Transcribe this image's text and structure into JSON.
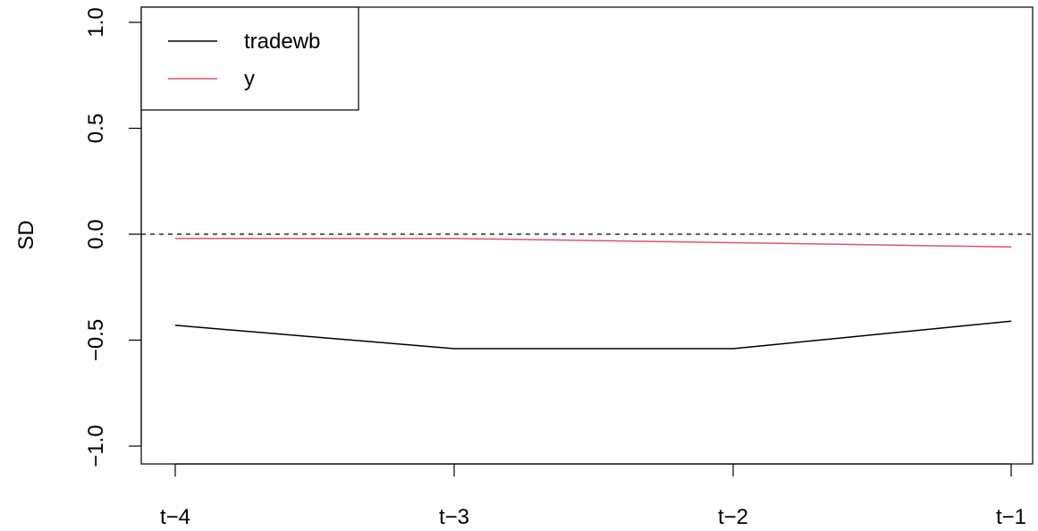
{
  "chart_data": {
    "type": "line",
    "title": "",
    "xlabel": "",
    "ylabel": "SD",
    "categories": [
      "t−4",
      "t−3",
      "t−2",
      "t−1"
    ],
    "ylim": [
      -1.0,
      1.0
    ],
    "yticks": [
      -1.0,
      -0.5,
      0.0,
      0.5,
      1.0
    ],
    "ytick_labels": [
      "−1.0",
      "−0.5",
      "0.0",
      "0.5",
      "1.0"
    ],
    "reference_line": {
      "y": 0.0,
      "style": "dashed"
    },
    "grid": false,
    "legend_position": "top-left",
    "series": [
      {
        "name": "tradewb",
        "color": "#000000",
        "values": [
          -0.43,
          -0.54,
          -0.54,
          -0.41
        ]
      },
      {
        "name": "y",
        "color": "#DF536B",
        "values": [
          -0.02,
          -0.02,
          -0.04,
          -0.06
        ]
      }
    ]
  }
}
